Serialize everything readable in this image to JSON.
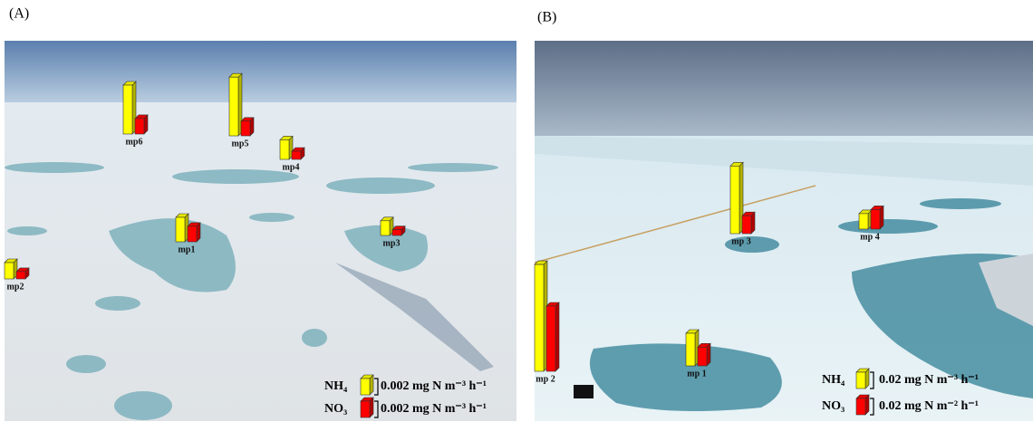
{
  "chart_data": [
    {
      "type": "bar",
      "label": "(A)",
      "categories": [
        "mp6",
        "mp5",
        "mp4",
        "mp1",
        "mp3",
        "mp2"
      ],
      "series": [
        {
          "name": "NH₄",
          "color": "#ffff00",
          "values": [
            0.006,
            0.0072,
            0.0024,
            0.003,
            0.0018,
            0.002
          ],
          "scale": {
            "value": 0.002,
            "label": "0.002 mg N m⁻³ h⁻¹"
          }
        },
        {
          "name": "NO₃",
          "color": "#ff0000",
          "values": [
            0.0019,
            0.0018,
            0.001,
            0.0019,
            0.0007,
            0.0009
          ],
          "scale": {
            "value": 0.002,
            "label": "0.002 mg N m⁻³ h⁻¹"
          }
        }
      ]
    },
    {
      "type": "bar",
      "label": "(B)",
      "categories": [
        "mp 3",
        "mp 4",
        "mp 2",
        "mp 1"
      ],
      "series": [
        {
          "name": "NH₄",
          "color": "#ffff00",
          "values": [
            0.083,
            0.019,
            0.131,
            0.04
          ],
          "scale": {
            "value": 0.02,
            "label": "0.02 mg N m⁻³ h⁻¹"
          }
        },
        {
          "name": "NO₃",
          "color": "#ff0000",
          "values": [
            0.022,
            0.024,
            0.08,
            0.023
          ],
          "scale": {
            "value": 0.02,
            "label": "0.02 mg N m⁻² h⁻¹"
          }
        }
      ]
    }
  ]
}
